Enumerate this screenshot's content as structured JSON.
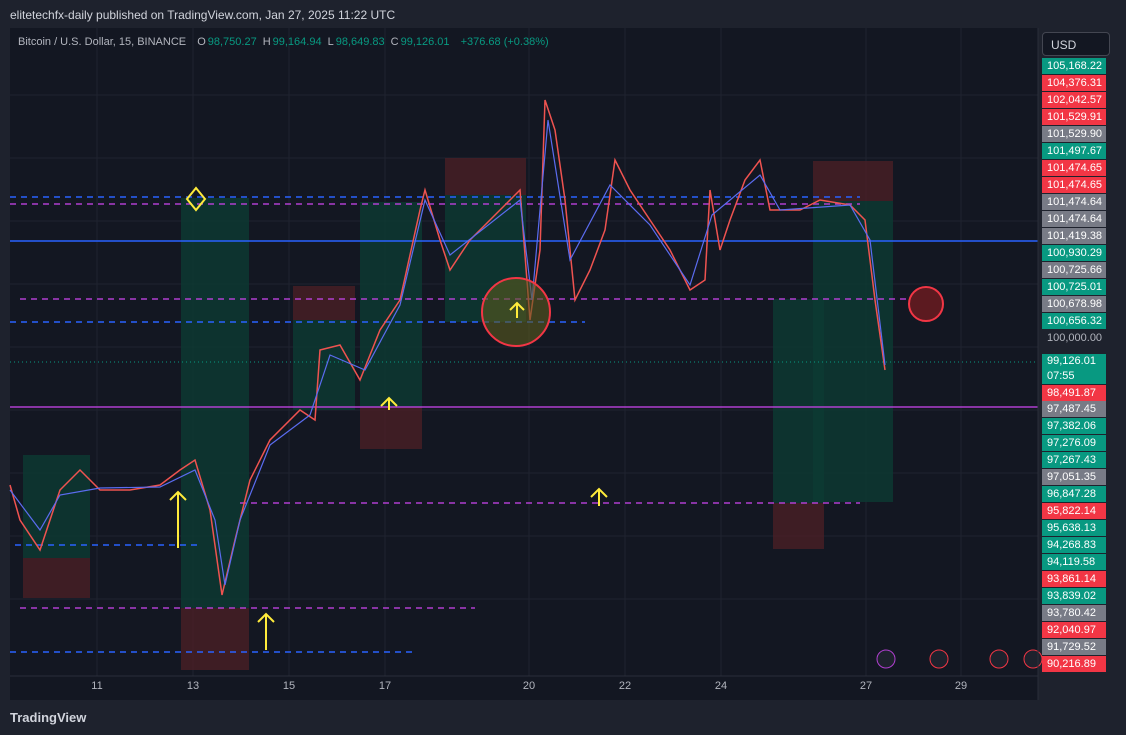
{
  "header": {
    "published": "elitetechfx-daily published on TradingView.com, Jan 27, 2025 11:22 UTC"
  },
  "symbol": {
    "name": "Bitcoin / U.S. Dollar, 15, BINANCE",
    "ohlc": [
      {
        "label": "O",
        "value": "98,750.27"
      },
      {
        "label": "H",
        "value": "99,164.94"
      },
      {
        "label": "L",
        "value": "98,649.83"
      },
      {
        "label": "C",
        "value": "99,126.01"
      }
    ],
    "change": "+376.68 (+0.38%)"
  },
  "currency": "USD",
  "price_axis": {
    "labels": [
      {
        "text": "105,168.22",
        "color": "#089981"
      },
      {
        "text": "104,376.31",
        "color": "#f23645"
      },
      {
        "text": "102,042.57",
        "color": "#f23645"
      },
      {
        "text": "101,529.91",
        "color": "#f23645"
      },
      {
        "text": "101,529.90",
        "color": "#787b86"
      },
      {
        "text": "101,497.67",
        "color": "#089981"
      },
      {
        "text": "101,474.65",
        "color": "#f23645"
      },
      {
        "text": "101,474.65",
        "color": "#f23645"
      },
      {
        "text": "101,474.64",
        "color": "#787b86"
      },
      {
        "text": "101,474.64",
        "color": "#787b86"
      },
      {
        "text": "101,419.38",
        "color": "#787b86"
      },
      {
        "text": "100,930.29",
        "color": "#089981"
      },
      {
        "text": "100,725.66",
        "color": "#787b86"
      },
      {
        "text": "100,725.01",
        "color": "#089981"
      },
      {
        "text": "100,678.98",
        "color": "#787b86"
      },
      {
        "text": "100,656.32",
        "color": "#089981"
      },
      {
        "text": "100,000.00",
        "color": "none"
      },
      {
        "text": "99,126.01",
        "color": "#089981"
      },
      {
        "text": "98,491.87",
        "color": "#f23645"
      },
      {
        "text": "97,487.45",
        "color": "#787b86"
      },
      {
        "text": "97,382.06",
        "color": "#089981"
      },
      {
        "text": "97,276.09",
        "color": "#089981"
      },
      {
        "text": "97,267.43",
        "color": "#089981"
      },
      {
        "text": "97,051.35",
        "color": "#787b86"
      },
      {
        "text": "96,847.28",
        "color": "#089981"
      },
      {
        "text": "95,822.14",
        "color": "#f23645"
      },
      {
        "text": "95,638.13",
        "color": "#089981"
      },
      {
        "text": "94,268.83",
        "color": "#089981"
      },
      {
        "text": "94,119.58",
        "color": "#089981"
      },
      {
        "text": "93,861.14",
        "color": "#f23645"
      },
      {
        "text": "93,839.02",
        "color": "#089981"
      },
      {
        "text": "93,780.42",
        "color": "#787b86"
      },
      {
        "text": "92,040.97",
        "color": "#f23645"
      },
      {
        "text": "91,729.52",
        "color": "#787b86"
      },
      {
        "text": "90,216.89",
        "color": "#f23645"
      }
    ],
    "countdown": "07:55"
  },
  "x_axis": {
    "labels": [
      "11",
      "13",
      "15",
      "17",
      "20",
      "22",
      "24",
      "27",
      "29"
    ]
  },
  "footer": {
    "brand": "TradingView"
  }
}
